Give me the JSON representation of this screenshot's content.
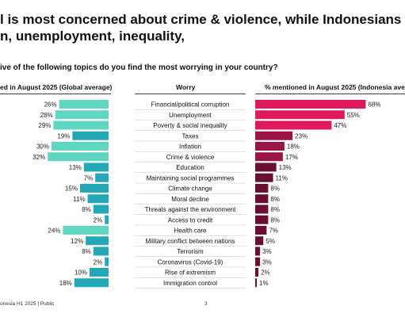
{
  "headline": {
    "line1": "l is most concerned about crime & violence, while Indonesians fo",
    "line2": "n, unemployment, inequality,"
  },
  "question": "ive of the following topics do you find the most worrying in your country?",
  "headers": {
    "global": "ed in August 2025 (Global average)",
    "worry": "Worry",
    "indonesia": "% mentioned in August 2025 (Indonesia avera"
  },
  "footer": {
    "left": "onesia H1 2025 | Public",
    "page": "3"
  },
  "colors": {
    "global_light": "#5fd6c0",
    "global_dark": "#23a8b8",
    "indo_strong": "#e0195f",
    "indo_mid": "#9b1446",
    "indo_dark": "#6b0f34"
  },
  "chart_data": {
    "type": "bar",
    "categories": [
      "Financial/political corruption",
      "Unemployment",
      "Poverty & social inequality",
      "Taxes",
      "Inflation",
      "Crime & violence",
      "Education",
      "Maintaining social programmes",
      "Climate change",
      "Moral decline",
      "Threats against the environment",
      "Access to credit",
      "Health care",
      "Military conflict between nations",
      "Terrorism",
      "Coronavirus (Covid-19)",
      "Rise of extremism",
      "Immigration control"
    ],
    "series": [
      {
        "values": [
          26,
          28,
          29,
          19,
          30,
          32,
          13,
          7,
          15,
          11,
          8,
          2,
          24,
          12,
          8,
          2,
          10,
          18
        ]
      },
      {
        "values": [
          68,
          55,
          47,
          23,
          18,
          17,
          13,
          11,
          8,
          8,
          8,
          8,
          7,
          5,
          3,
          3,
          2,
          1
        ]
      }
    ],
    "value_labels": {
      "global": [
        "26%",
        "28%",
        "29%",
        "19%",
        "30%",
        "32%",
        "13%",
        "7%",
        "15%",
        "11%",
        "8%",
        "2%",
        "24%",
        "12%",
        "8%",
        "2%",
        "10%",
        "18%"
      ],
      "indonesia": [
        "68%",
        "55%",
        "47%",
        "23%",
        "18%",
        "17%",
        "13%",
        "11%",
        "8%",
        "8%",
        "8%",
        "8%",
        "7%",
        "5%",
        "3%",
        "3%",
        "2%",
        "1%"
      ]
    },
    "global_highlight": [
      true,
      true,
      true,
      false,
      true,
      true,
      false,
      false,
      false,
      false,
      false,
      false,
      true,
      false,
      false,
      false,
      false,
      false
    ],
    "indonesia_tier": [
      "strong",
      "strong",
      "strong",
      "mid",
      "mid",
      "mid",
      "dark",
      "dark",
      "dark",
      "dark",
      "dark",
      "dark",
      "dark",
      "dark",
      "dark",
      "dark",
      "dark",
      "dark"
    ]
  }
}
